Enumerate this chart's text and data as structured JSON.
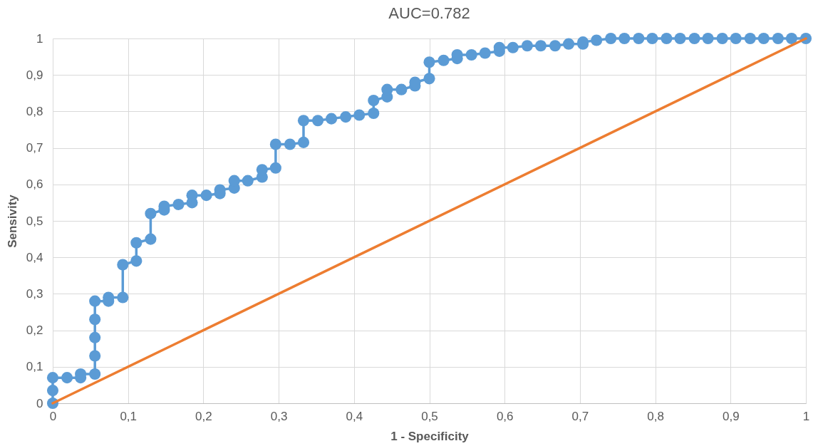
{
  "chart_data": {
    "type": "line",
    "title": "AUC=0.782",
    "xlabel": "1 - Specificity",
    "ylabel": "Sensivity",
    "xlim": [
      0,
      1
    ],
    "ylim": [
      0,
      1
    ],
    "xticks": [
      0,
      {
        "value": 0.1,
        "label": "0,1"
      },
      {
        "value": 0.2,
        "label": "0,2"
      },
      {
        "value": 0.3,
        "label": "0,3"
      },
      {
        "value": 0.4,
        "label": "0,4"
      },
      {
        "value": 0.5,
        "label": "0,5"
      },
      {
        "value": 0.6,
        "label": "0,6"
      },
      {
        "value": 0.7,
        "label": "0,7"
      },
      {
        "value": 0.8,
        "label": "0,8"
      },
      {
        "value": 0.9,
        "label": "0,9"
      },
      1
    ],
    "yticks": [
      0,
      {
        "value": 0.1,
        "label": "0,1"
      },
      {
        "value": 0.2,
        "label": "0,2"
      },
      {
        "value": 0.3,
        "label": "0,3"
      },
      {
        "value": 0.4,
        "label": "0,4"
      },
      {
        "value": 0.5,
        "label": "0,5"
      },
      {
        "value": 0.6,
        "label": "0,6"
      },
      {
        "value": 0.7,
        "label": "0,7"
      },
      {
        "value": 0.8,
        "label": "0,8"
      },
      {
        "value": 0.9,
        "label": "0,9"
      },
      1
    ],
    "grid": true,
    "series": [
      {
        "color": "#5b9bd5",
        "marker": "circle",
        "x": [
          0,
          0,
          0,
          0.019,
          0.037,
          0.037,
          0.056,
          0.056,
          0.056,
          0.056,
          0.056,
          0.074,
          0.074,
          0.093,
          0.093,
          0.111,
          0.111,
          0.13,
          0.13,
          0.148,
          0.148,
          0.167,
          0.185,
          0.185,
          0.204,
          0.222,
          0.222,
          0.241,
          0.241,
          0.259,
          0.278,
          0.278,
          0.296,
          0.296,
          0.315,
          0.333,
          0.333,
          0.352,
          0.37,
          0.389,
          0.407,
          0.426,
          0.426,
          0.444,
          0.444,
          0.463,
          0.481,
          0.481,
          0.5,
          0.5,
          0.519,
          0.537,
          0.537,
          0.556,
          0.574,
          0.593,
          0.593,
          0.611,
          0.63,
          0.648,
          0.667,
          0.685,
          0.704,
          0.704,
          0.722,
          0.741,
          0.759,
          0.778,
          0.796,
          0.815,
          0.833,
          0.852,
          0.87,
          0.889,
          0.907,
          0.926,
          0.944,
          0.963,
          0.981,
          1
        ],
        "values": [
          0,
          0.035,
          0.07,
          0.07,
          0.07,
          0.08,
          0.08,
          0.13,
          0.18,
          0.23,
          0.28,
          0.28,
          0.29,
          0.29,
          0.38,
          0.39,
          0.44,
          0.45,
          0.52,
          0.53,
          0.54,
          0.545,
          0.55,
          0.57,
          0.57,
          0.575,
          0.585,
          0.59,
          0.61,
          0.61,
          0.62,
          0.64,
          0.645,
          0.71,
          0.71,
          0.715,
          0.775,
          0.775,
          0.78,
          0.785,
          0.79,
          0.795,
          0.83,
          0.84,
          0.86,
          0.86,
          0.87,
          0.88,
          0.89,
          0.935,
          0.94,
          0.945,
          0.955,
          0.955,
          0.96,
          0.965,
          0.975,
          0.975,
          0.98,
          0.98,
          0.98,
          0.985,
          0.985,
          0.99,
          0.995,
          1,
          1,
          1,
          1,
          1,
          1,
          1,
          1,
          1,
          1,
          1,
          1,
          1,
          1,
          1
        ]
      },
      {
        "color": "#ed7d31",
        "marker": "none",
        "x": [
          0,
          1
        ],
        "values": [
          0,
          1
        ]
      }
    ]
  }
}
